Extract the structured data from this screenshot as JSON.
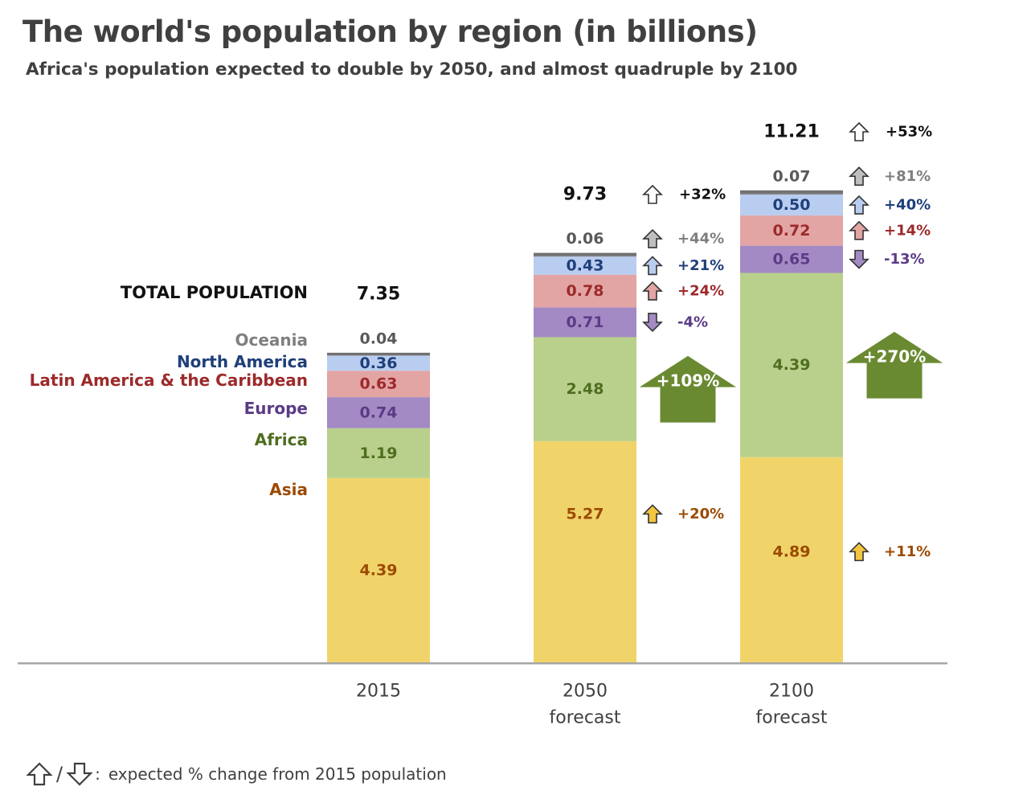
{
  "title": "The world's population by region (in billions)",
  "subtitle": "Africa's population expected to double by 2050, and almost quadruple by 2100",
  "legend_note": {
    "text": "expected % change from 2015 population",
    "up_icon": "outline-up-arrow-icon",
    "down_icon": "outline-down-arrow-icon"
  },
  "colors": {
    "Asia": "#f0d46a",
    "Africa": "#b8d08c",
    "Europe": "#a38ac4",
    "Latin America & the Caribbean": "#e3a4a4",
    "North America": "#b9cdf0",
    "Oceania": "#7f7f7f",
    "axis": "#a6a6a6",
    "big_arrow": "#6a8a32"
  },
  "chart_data": {
    "type": "bar",
    "stacked": true,
    "title": "The world's population by region (in billions)",
    "subtitle": "Africa's population expected to double by 2050, and almost quadruple by 2100",
    "categories": [
      "2015",
      "2050\nforecast",
      "2100\nforecast"
    ],
    "total_label": "TOTAL POPULATION",
    "totals": [
      7.35,
      9.73,
      11.21
    ],
    "total_changes": [
      null,
      "+32%",
      "+53%"
    ],
    "series": [
      {
        "name": "Asia",
        "values": [
          4.39,
          5.27,
          4.89
        ],
        "changes": [
          null,
          "+20%",
          "+11%"
        ],
        "label_color": "#9c4a00",
        "change_color": "#9c4a00",
        "arrow_fill": "#f4c542"
      },
      {
        "name": "Africa",
        "values": [
          1.19,
          2.48,
          4.39
        ],
        "changes": [
          null,
          "+109%",
          "+270%"
        ],
        "label_color": "#4f6d1f",
        "change_color": "#ffffff",
        "arrow_fill": "#6a8a32"
      },
      {
        "name": "Europe",
        "values": [
          0.74,
          0.71,
          0.65
        ],
        "changes": [
          null,
          "-4%",
          "-13%"
        ],
        "label_color": "#5b3b86",
        "change_color": "#5b3b86",
        "arrow_fill": "#a38ac4"
      },
      {
        "name": "Latin America & the Caribbean",
        "values": [
          0.63,
          0.78,
          0.72
        ],
        "changes": [
          null,
          "+24%",
          "+14%"
        ],
        "label_color": "#9c2a2a",
        "change_color": "#9c2a2a",
        "arrow_fill": "#e3a4a4"
      },
      {
        "name": "North America",
        "values": [
          0.36,
          0.43,
          0.5
        ],
        "changes": [
          null,
          "+21%",
          "+40%"
        ],
        "label_color": "#1f3f7a",
        "change_color": "#1f3f7a",
        "arrow_fill": "#b9cdf0"
      },
      {
        "name": "Oceania",
        "values": [
          0.04,
          0.06,
          0.07
        ],
        "changes": [
          null,
          "+44%",
          "+81%"
        ],
        "label_color": "#7f7f7f",
        "change_color": "#7f7f7f",
        "arrow_fill": "#bfbfbf"
      }
    ]
  }
}
